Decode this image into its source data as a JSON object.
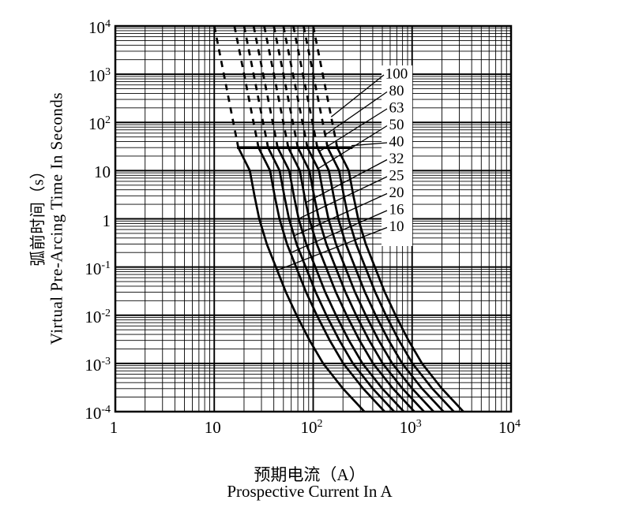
{
  "figure": {
    "x_axis": {
      "title_zh": "预期电流（A）",
      "title_en": "Prospective Current In A",
      "scale": "log",
      "min": 1,
      "max": 10000,
      "ticks": [
        "1",
        "10",
        "10^2",
        "10^3",
        "10^4"
      ]
    },
    "y_axis": {
      "title_zh": "弧前时间（s）",
      "title_en": "Virtual Pre-Arcing Time In Seconds",
      "scale": "log",
      "min": 0.0001,
      "max": 10000,
      "ticks": [
        "10^4",
        "10^3",
        "10^2",
        "10",
        "1",
        "10^-1",
        "10^-2",
        "10^-3",
        "10^-4"
      ]
    }
  },
  "chart_data": {
    "type": "line",
    "description": "Fuse time-current characteristics: virtual pre-arcing time in seconds versus prospective current in amperes, log-log grid, one curve per rated current; upper portions dashed, lower portions solid",
    "x": {
      "label": "Prospective Current In A",
      "range": [
        1,
        10000
      ],
      "scale": "log"
    },
    "y": {
      "label": "Virtual Pre-Arcing Time In Seconds",
      "range": [
        0.0001,
        10000
      ],
      "scale": "log"
    },
    "series": [
      {
        "name": "10",
        "rating_A": 10
      },
      {
        "name": "16",
        "rating_A": 16
      },
      {
        "name": "20",
        "rating_A": 20
      },
      {
        "name": "25",
        "rating_A": 25
      },
      {
        "name": "32",
        "rating_A": 32
      },
      {
        "name": "40",
        "rating_A": 40
      },
      {
        "name": "50",
        "rating_A": 50
      },
      {
        "name": "63",
        "rating_A": 63
      },
      {
        "name": "80",
        "rating_A": 80
      },
      {
        "name": "100",
        "rating_A": 100
      }
    ],
    "base_curve_time_s_vs_current_multiple_of_rating": {
      "dashed": [
        [
          10000,
          1.0
        ],
        [
          1000,
          1.25
        ],
        [
          100,
          1.56
        ],
        [
          30,
          1.75
        ]
      ],
      "solid": [
        [
          30,
          1.75
        ],
        [
          10,
          2.29
        ],
        [
          3,
          2.55
        ],
        [
          1,
          2.85
        ],
        [
          0.3,
          3.4
        ],
        [
          0.1,
          4.2
        ],
        [
          0.03,
          5.3
        ],
        [
          0.01,
          6.8
        ],
        [
          0.003,
          9.2
        ],
        [
          0.001,
          12.6
        ],
        [
          0.0003,
          20.0
        ],
        [
          0.0001,
          33.0
        ]
      ]
    },
    "transition_bar": {
      "time_s": 30,
      "current_from_A": 17,
      "current_to_A": 250
    },
    "curve_labels": [
      {
        "text": "100",
        "touch_current_A": 152,
        "touch_time_s": 130
      },
      {
        "text": "80",
        "touch_current_A": 132,
        "touch_time_s": 55
      },
      {
        "text": "63",
        "touch_current_A": 115,
        "touch_time_s": 25
      },
      {
        "text": "50",
        "touch_current_A": 112,
        "touch_time_s": 11
      },
      {
        "text": "40",
        "touch_current_A": 244,
        "touch_time_s": 33
      },
      {
        "text": "32",
        "touch_current_A": 85,
        "touch_time_s": 2.2
      },
      {
        "text": "25",
        "touch_current_A": 71,
        "touch_time_s": 1.0
      },
      {
        "text": "20",
        "touch_current_A": 65,
        "touch_time_s": 0.45
      },
      {
        "text": "16",
        "touch_current_A": 60,
        "touch_time_s": 0.2
      },
      {
        "text": "10",
        "touch_current_A": 43,
        "touch_time_s": 0.085
      }
    ],
    "legend_position": "label box inside plot, upper right of curve bundle",
    "grid": "log-log major and minor gridlines",
    "colors": {
      "ink": "#000000",
      "background": "#ffffff"
    }
  }
}
